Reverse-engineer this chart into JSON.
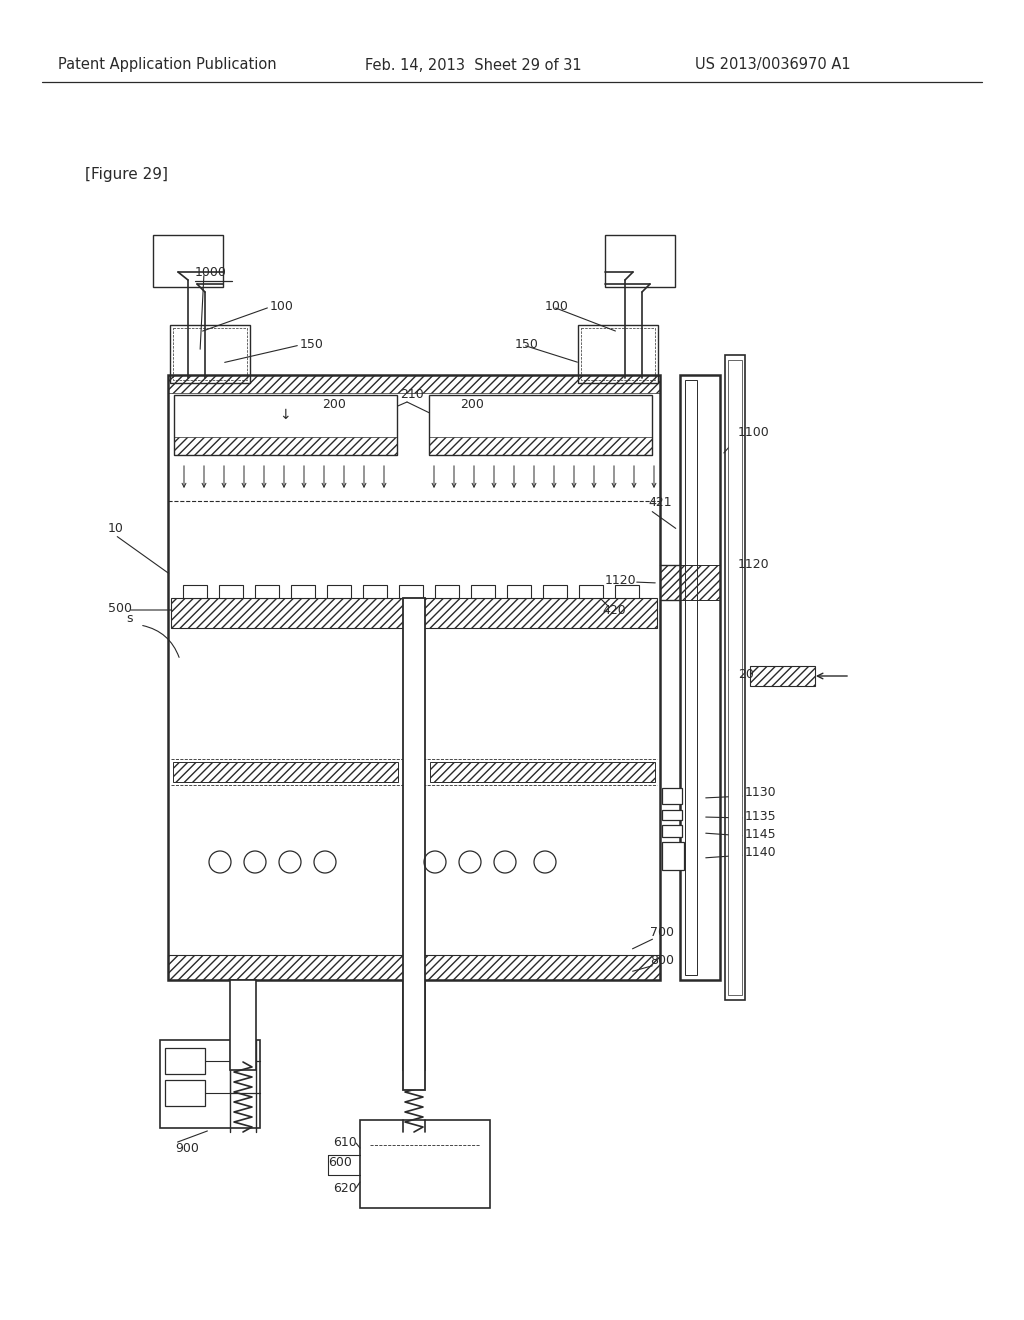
{
  "bg": "#ffffff",
  "lc": "#2a2a2a",
  "header_left": "Patent Application Publication",
  "header_mid": "Feb. 14, 2013  Sheet 29 of 31",
  "header_right": "US 2013/0036970 A1",
  "fig_label": "[Figure 29]",
  "lbl_1000": "1000",
  "lbl_100": "100",
  "lbl_150": "150",
  "lbl_200": "200",
  "lbl_210": "210",
  "lbl_10": "10",
  "lbl_s": "s",
  "lbl_500": "500",
  "lbl_420": "420",
  "lbl_421": "421",
  "lbl_1100": "1100",
  "lbl_1120": "1120",
  "lbl_20": "20",
  "lbl_700": "700",
  "lbl_800": "800",
  "lbl_1130": "1130",
  "lbl_1135": "1135",
  "lbl_1145": "1145",
  "lbl_1140": "1140",
  "lbl_900": "900",
  "lbl_600": "600",
  "lbl_610": "610",
  "lbl_620": "620"
}
